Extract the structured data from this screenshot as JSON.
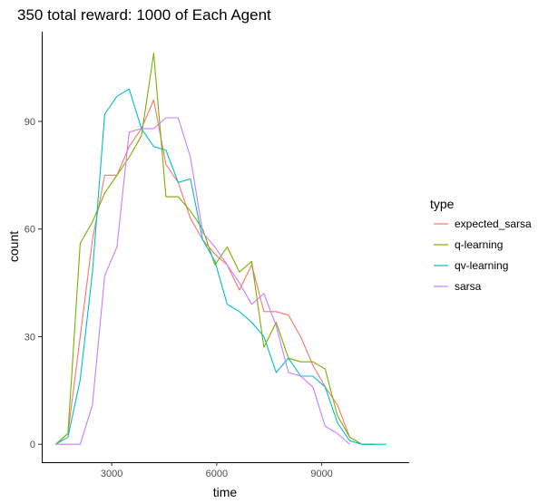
{
  "chart_data": {
    "type": "line",
    "title": "350 total reward: 1000 of Each Agent",
    "xlabel": "time",
    "ylabel": "count",
    "xlim": [
      1000,
      11500
    ],
    "ylim": [
      -5,
      115
    ],
    "xticks": [
      3000,
      6000,
      9000
    ],
    "yticks": [
      0,
      30,
      60,
      90
    ],
    "x_tick_labels": [
      "3000",
      "6000",
      "9000"
    ],
    "y_tick_labels": [
      "0",
      "30",
      "60",
      "90"
    ],
    "grid": false,
    "legend": {
      "title": "type",
      "placement": "right"
    },
    "series": [
      {
        "name": "expected_sarsa",
        "color": "#F8766D",
        "points": [
          [
            1400,
            0
          ],
          [
            1750,
            3
          ],
          [
            2100,
            30
          ],
          [
            2450,
            57
          ],
          [
            2800,
            75
          ],
          [
            3150,
            75
          ],
          [
            3500,
            83
          ],
          [
            3850,
            88
          ],
          [
            4200,
            96
          ],
          [
            4550,
            78
          ],
          [
            4900,
            73
          ],
          [
            5250,
            63
          ],
          [
            5600,
            57
          ],
          [
            5950,
            53
          ],
          [
            6300,
            50
          ],
          [
            6650,
            43
          ],
          [
            7000,
            50
          ],
          [
            7350,
            37
          ],
          [
            7700,
            37
          ],
          [
            8050,
            36
          ],
          [
            8400,
            30
          ],
          [
            8750,
            22
          ],
          [
            9100,
            16
          ],
          [
            9450,
            11
          ],
          [
            9800,
            2
          ],
          [
            10150,
            0
          ],
          [
            10500,
            0
          ]
        ]
      },
      {
        "name": "q-learning",
        "color": "#7CAE00",
        "points": [
          [
            1400,
            0
          ],
          [
            1750,
            3
          ],
          [
            2100,
            56
          ],
          [
            2450,
            62
          ],
          [
            2800,
            70
          ],
          [
            3150,
            75
          ],
          [
            3500,
            80
          ],
          [
            3850,
            86
          ],
          [
            4200,
            109
          ],
          [
            4550,
            69
          ],
          [
            4900,
            69
          ],
          [
            5250,
            65
          ],
          [
            5600,
            60
          ],
          [
            5950,
            50
          ],
          [
            6300,
            55
          ],
          [
            6650,
            48
          ],
          [
            7000,
            51
          ],
          [
            7350,
            27
          ],
          [
            7700,
            34
          ],
          [
            8050,
            24
          ],
          [
            8400,
            23
          ],
          [
            8750,
            23
          ],
          [
            9100,
            21
          ],
          [
            9450,
            8
          ],
          [
            9800,
            2
          ],
          [
            10150,
            0
          ],
          [
            10500,
            0
          ]
        ]
      },
      {
        "name": "qv-learning",
        "color": "#00BFC4",
        "points": [
          [
            1400,
            0
          ],
          [
            1750,
            2
          ],
          [
            2100,
            18
          ],
          [
            2450,
            48
          ],
          [
            2800,
            92
          ],
          [
            3150,
            97
          ],
          [
            3500,
            99
          ],
          [
            3850,
            88
          ],
          [
            4200,
            83
          ],
          [
            4550,
            82
          ],
          [
            4900,
            73
          ],
          [
            5250,
            74
          ],
          [
            5600,
            57
          ],
          [
            5950,
            51
          ],
          [
            6300,
            39
          ],
          [
            6650,
            37
          ],
          [
            7000,
            34
          ],
          [
            7350,
            30
          ],
          [
            7700,
            20
          ],
          [
            8050,
            24
          ],
          [
            8400,
            19
          ],
          [
            8750,
            19
          ],
          [
            9100,
            16
          ],
          [
            9450,
            6
          ],
          [
            9800,
            1
          ],
          [
            10150,
            0
          ],
          [
            10500,
            0
          ],
          [
            10850,
            0
          ]
        ]
      },
      {
        "name": "sarsa",
        "color": "#C77CFF",
        "points": [
          [
            1400,
            0
          ],
          [
            1750,
            0
          ],
          [
            2100,
            0
          ],
          [
            2450,
            11
          ],
          [
            2800,
            47
          ],
          [
            3150,
            55
          ],
          [
            3500,
            87
          ],
          [
            3850,
            88
          ],
          [
            4200,
            88
          ],
          [
            4550,
            91
          ],
          [
            4900,
            91
          ],
          [
            5250,
            80
          ],
          [
            5600,
            59
          ],
          [
            5950,
            55
          ],
          [
            6300,
            50
          ],
          [
            6650,
            45
          ],
          [
            7000,
            39
          ],
          [
            7350,
            42
          ],
          [
            7700,
            33
          ],
          [
            8050,
            20
          ],
          [
            8400,
            19
          ],
          [
            8750,
            16
          ],
          [
            9100,
            5
          ],
          [
            9450,
            3
          ],
          [
            9800,
            0
          ]
        ]
      }
    ]
  }
}
